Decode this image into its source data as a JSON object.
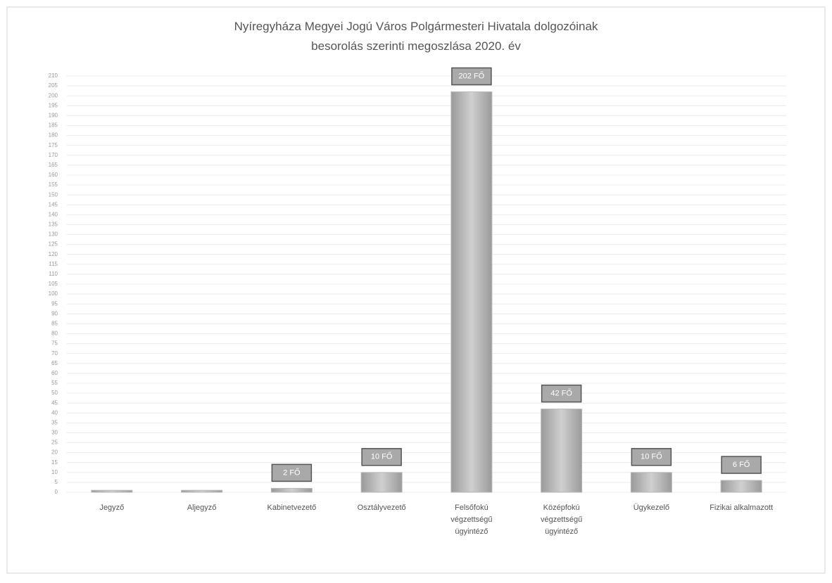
{
  "chart_data": {
    "type": "bar",
    "title": "Nyíregyháza Megyei Jogú Város Polgármesteri Hivatala dolgozóinak\nbesorolás szerinti megoszlása 2020. év",
    "categories": [
      "Jegyző",
      "Aljegyző",
      "Kabinetvezető",
      "Osztályvezető",
      "Felsőfokú\nvégzettségű\nügyintéző",
      "Középfokú\nvégzettségű\nügyintéző",
      "Ügykezelő",
      "Fizikai alkalmazott"
    ],
    "values": [
      1,
      1,
      2,
      10,
      202,
      42,
      10,
      6
    ],
    "value_labels": [
      null,
      null,
      "2 FŐ",
      "10 FŐ",
      "202 FŐ",
      "42 FŐ",
      "10 FŐ",
      "6 FŐ"
    ],
    "color": "#b9b9b9",
    "ylim": [
      0,
      210
    ],
    "yticks": [
      0,
      5,
      10,
      15,
      20,
      25,
      30,
      35,
      40,
      45,
      50,
      55,
      60,
      65,
      70,
      75,
      80,
      85,
      90,
      95,
      100,
      105,
      110,
      115,
      120,
      125,
      130,
      135,
      140,
      145,
      150,
      155,
      160,
      165,
      170,
      175,
      180,
      185,
      190,
      195,
      200,
      205,
      210
    ],
    "grid": true
  }
}
